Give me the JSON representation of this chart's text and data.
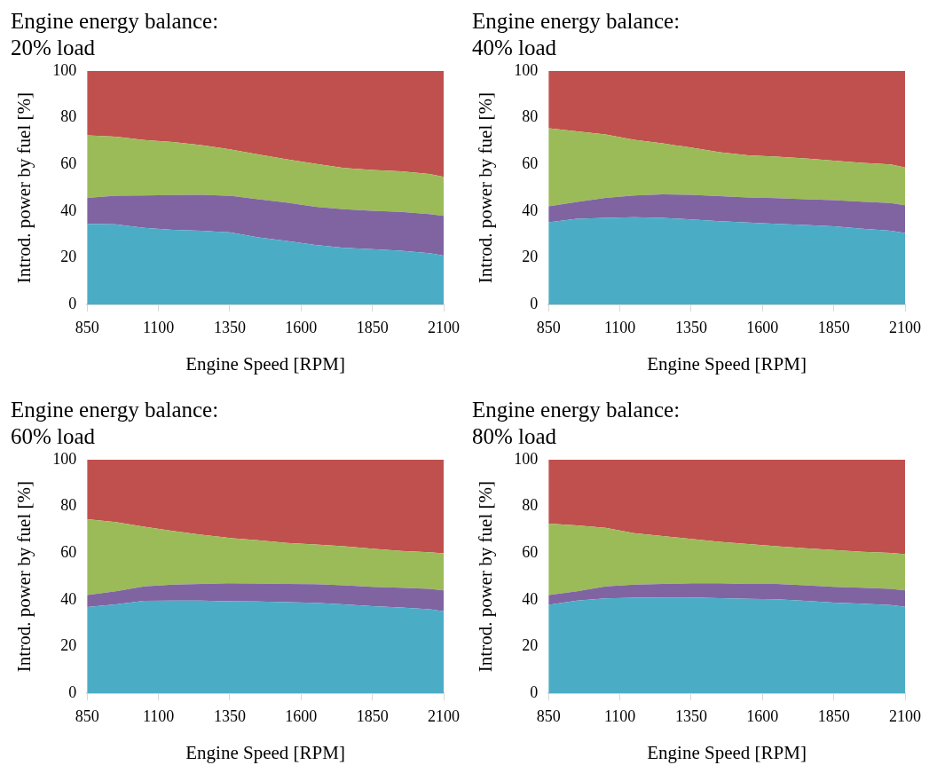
{
  "chart_data": [
    {
      "type": "area",
      "title": "Engine energy balance:\n20% load",
      "xlabel": "Engine Speed [RPM]",
      "ylabel": "Introd. power by fuel [%]",
      "stacked": true,
      "grid": false,
      "legend": false,
      "x": [
        850,
        950,
        1050,
        1150,
        1250,
        1350,
        1450,
        1550,
        1650,
        1750,
        1850,
        1950,
        2050,
        2100
      ],
      "xlim": [
        850,
        2100
      ],
      "xticks": [
        850,
        1100,
        1350,
        1600,
        1850,
        2100
      ],
      "ylim": [
        0,
        100
      ],
      "yticks": [
        0,
        20,
        40,
        60,
        80,
        100
      ],
      "series": [
        {
          "color": "#4bacc6",
          "values": [
            34.6,
            34.4,
            32.8,
            32.0,
            31.6,
            30.9,
            28.8,
            27.2,
            25.5,
            24.3,
            23.7,
            23.1,
            22.0,
            21.0
          ]
        },
        {
          "color": "#8064a2",
          "values": [
            11.1,
            12.2,
            13.9,
            14.9,
            15.4,
            15.7,
            16.3,
            16.5,
            16.4,
            16.5,
            16.5,
            16.6,
            16.7,
            17.0
          ]
        },
        {
          "color": "#9bbb59",
          "values": [
            26.8,
            25.3,
            23.8,
            22.7,
            21.3,
            19.9,
            19.2,
            18.5,
            18.4,
            17.7,
            17.4,
            17.4,
            17.2,
            16.7
          ]
        },
        {
          "color": "#c0504d",
          "values": [
            27.5,
            28.1,
            29.5,
            30.4,
            31.7,
            33.5,
            35.7,
            37.8,
            39.7,
            41.5,
            42.4,
            42.9,
            44.1,
            45.3
          ]
        }
      ]
    },
    {
      "type": "area",
      "title": "Engine energy balance:\n40% load",
      "xlabel": "Engine Speed [RPM]",
      "ylabel": "Introd. power by fuel [%]",
      "stacked": true,
      "grid": false,
      "legend": false,
      "x": [
        850,
        950,
        1050,
        1150,
        1250,
        1350,
        1450,
        1550,
        1650,
        1750,
        1850,
        1950,
        2050,
        2100
      ],
      "xlim": [
        850,
        2100
      ],
      "xticks": [
        850,
        1100,
        1350,
        1600,
        1850,
        2100
      ],
      "ylim": [
        0,
        100
      ],
      "yticks": [
        0,
        20,
        40,
        60,
        80,
        100
      ],
      "series": [
        {
          "color": "#4bacc6",
          "values": [
            35.2,
            36.7,
            37.1,
            37.4,
            37.1,
            36.5,
            35.7,
            35.1,
            34.6,
            34.1,
            33.5,
            32.5,
            31.6,
            30.6
          ]
        },
        {
          "color": "#8064a2",
          "values": [
            6.9,
            7.3,
            8.6,
            9.3,
            10.1,
            10.5,
            10.7,
            10.8,
            11.0,
            11.0,
            11.2,
            11.6,
            11.9,
            11.9
          ]
        },
        {
          "color": "#9bbb59",
          "values": [
            33.4,
            30.2,
            27.1,
            23.9,
            21.8,
            20.2,
            18.8,
            18.0,
            17.7,
            17.5,
            16.9,
            16.6,
            16.5,
            16.2
          ]
        },
        {
          "color": "#c0504d",
          "values": [
            24.5,
            25.8,
            27.2,
            29.4,
            31.0,
            32.8,
            34.8,
            36.1,
            36.7,
            37.4,
            38.4,
            39.3,
            40.0,
            41.3
          ]
        }
      ]
    },
    {
      "type": "area",
      "title": "Engine energy balance:\n60% load",
      "xlabel": "Engine Speed [RPM]",
      "ylabel": "Introd. power by fuel [%]",
      "stacked": true,
      "grid": false,
      "legend": false,
      "x": [
        850,
        950,
        1050,
        1150,
        1250,
        1350,
        1450,
        1550,
        1650,
        1750,
        1850,
        1950,
        2050,
        2100
      ],
      "xlim": [
        850,
        2100
      ],
      "xticks": [
        850,
        1100,
        1350,
        1600,
        1850,
        2100
      ],
      "ylim": [
        0,
        100
      ],
      "yticks": [
        0,
        20,
        40,
        60,
        80,
        100
      ],
      "series": [
        {
          "color": "#4bacc6",
          "values": [
            36.9,
            38.1,
            39.6,
            39.7,
            39.7,
            39.4,
            39.3,
            39.0,
            38.7,
            38.1,
            37.3,
            36.7,
            36.0,
            35.1
          ]
        },
        {
          "color": "#8064a2",
          "values": [
            5.2,
            5.6,
            6.2,
            6.8,
            7.1,
            7.7,
            7.7,
            7.8,
            8.0,
            8.1,
            8.3,
            8.5,
            8.7,
            9.0
          ]
        },
        {
          "color": "#9bbb59",
          "values": [
            32.4,
            29.6,
            25.5,
            23.0,
            21.1,
            19.4,
            18.5,
            17.6,
            17.0,
            16.8,
            16.3,
            15.8,
            15.7,
            15.8
          ]
        },
        {
          "color": "#c0504d",
          "values": [
            25.5,
            26.7,
            28.7,
            30.5,
            32.1,
            33.5,
            34.5,
            35.6,
            36.3,
            37.0,
            38.1,
            39.0,
            39.6,
            40.1
          ]
        }
      ]
    },
    {
      "type": "area",
      "title": "Engine energy balance:\n80% load",
      "xlabel": "Engine Speed [RPM]",
      "ylabel": "Introd. power by fuel [%]",
      "stacked": true,
      "grid": false,
      "legend": false,
      "x": [
        850,
        950,
        1050,
        1150,
        1250,
        1350,
        1450,
        1550,
        1650,
        1750,
        1850,
        1950,
        2050,
        2100
      ],
      "xlim": [
        850,
        2100
      ],
      "xticks": [
        850,
        1100,
        1350,
        1600,
        1850,
        2100
      ],
      "ylim": [
        0,
        100
      ],
      "yticks": [
        0,
        20,
        40,
        60,
        80,
        100
      ],
      "series": [
        {
          "color": "#4bacc6",
          "values": [
            37.9,
            39.7,
            40.6,
            40.9,
            41.0,
            41.0,
            40.7,
            40.4,
            40.3,
            39.6,
            38.8,
            38.4,
            37.8,
            37.0
          ]
        },
        {
          "color": "#8064a2",
          "values": [
            4.2,
            4.0,
            5.2,
            5.6,
            5.8,
            6.1,
            6.4,
            6.4,
            6.5,
            6.6,
            6.8,
            6.8,
            6.9,
            7.1
          ]
        },
        {
          "color": "#9bbb59",
          "values": [
            30.5,
            28.2,
            25.0,
            22.1,
            20.5,
            19.0,
            17.8,
            17.1,
            16.2,
            15.9,
            15.7,
            15.4,
            15.4,
            15.5
          ]
        },
        {
          "color": "#c0504d",
          "values": [
            27.4,
            28.1,
            29.2,
            31.4,
            32.7,
            33.9,
            35.1,
            36.1,
            37.0,
            37.9,
            38.7,
            39.4,
            39.9,
            40.4
          ]
        }
      ]
    }
  ]
}
